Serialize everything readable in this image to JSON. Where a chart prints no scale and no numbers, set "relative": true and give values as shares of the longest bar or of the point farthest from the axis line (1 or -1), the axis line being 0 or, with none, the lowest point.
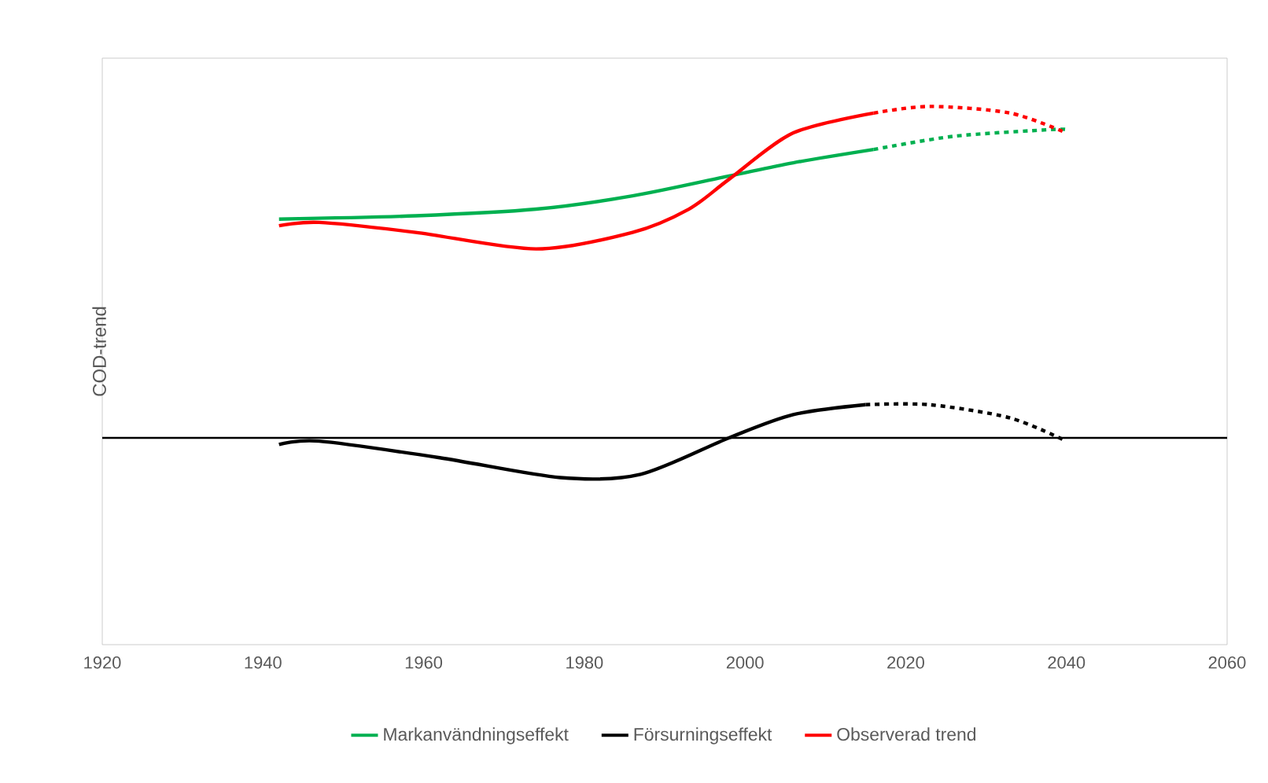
{
  "chart_data": {
    "type": "line",
    "ylabel": "COD-trend",
    "relative": true,
    "xlim": [
      1920,
      2060
    ],
    "xticks": [
      1920,
      1940,
      1960,
      1980,
      2000,
      2020,
      2040,
      2060
    ],
    "tick_labels": "x",
    "legend": "bottom",
    "marker": "none",
    "series": [
      {
        "name": "Markanvändningseffekt",
        "color": "#00b050",
        "line_style": "solid",
        "x": [
          1942,
          1959,
          1974,
          1986,
          1998,
          2006,
          2016
        ],
        "values": [
          0.66,
          0.67,
          0.69,
          0.73,
          0.79,
          0.83,
          0.87
        ]
      },
      {
        "name": "Försurningseffekt",
        "color": "#000000",
        "line_style": "solid",
        "x": [
          1942,
          1947,
          1962,
          1977,
          1987,
          1998,
          2006,
          2015
        ],
        "values": [
          -0.02,
          -0.01,
          -0.06,
          -0.12,
          -0.11,
          0,
          0.07,
          0.1
        ]
      },
      {
        "name": "Observerad trend",
        "color": "#ff0000",
        "line_style": "solid",
        "x": [
          1942,
          1947,
          1959,
          1974,
          1986,
          1993,
          1998,
          2006,
          2016
        ],
        "values": [
          0.64,
          0.65,
          0.62,
          0.57,
          0.62,
          0.69,
          0.78,
          0.92,
          0.98
        ]
      },
      {
        "color": "#00b050",
        "line_style": "dashed",
        "x": [
          2016,
          2026,
          2038,
          2040
        ],
        "values": [
          0.87,
          0.91,
          0.93,
          0.93
        ]
      },
      {
        "color": "#000000",
        "line_style": "dashed",
        "x": [
          2015,
          2023,
          2033,
          2040
        ],
        "values": [
          0.1,
          0.1,
          0.06,
          -0.01
        ]
      },
      {
        "color": "#ff0000",
        "line_style": "dashed",
        "x": [
          2016,
          2023,
          2033,
          2040
        ],
        "values": [
          0.98,
          1.0,
          0.98,
          0.92
        ]
      }
    ]
  }
}
